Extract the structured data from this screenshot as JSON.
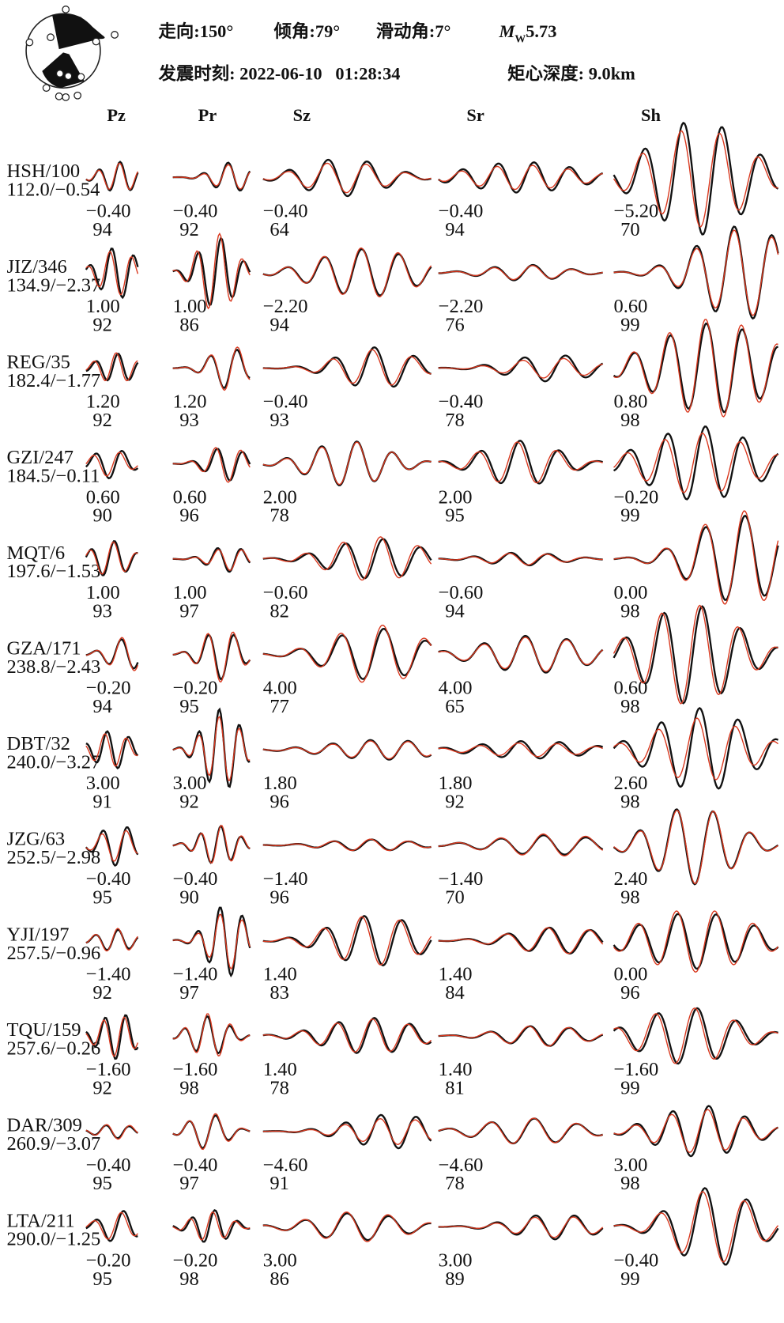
{
  "header": {
    "strike": "走向:150°",
    "dip": "倾角:79°",
    "rake": "滑动角:7°",
    "magnitude_symbol": "M",
    "magnitude_subscript": "W",
    "magnitude_value": "5.73",
    "origin_time": "发震时刻: 2022-06-10   01:28:34",
    "centroid_depth": "矩心深度: 9.0km"
  },
  "columns": [
    "Pz",
    "Pr",
    "Sz",
    "Sr",
    "Sh"
  ],
  "stations": [
    {
      "name": "HSH/100",
      "info": "112.0/−0.54",
      "shifts": [
        "−0.40",
        "−0.40",
        "−0.40",
        "−0.40",
        "−5.20"
      ],
      "correlations": [
        "94",
        "92",
        "64",
        "94",
        "70"
      ]
    },
    {
      "name": "JIZ/346",
      "info": "134.9/−2.37",
      "shifts": [
        "1.00",
        "1.00",
        "−2.20",
        "−2.20",
        "0.60"
      ],
      "correlations": [
        "92",
        "86",
        "94",
        "76",
        "99"
      ]
    },
    {
      "name": "REG/35",
      "info": "182.4/−1.77",
      "shifts": [
        "1.20",
        "1.20",
        "−0.40",
        "−0.40",
        "0.80"
      ],
      "correlations": [
        "92",
        "93",
        "93",
        "78",
        "98"
      ]
    },
    {
      "name": "GZI/247",
      "info": "184.5/−0.11",
      "shifts": [
        "0.60",
        "0.60",
        "2.00",
        "2.00",
        "−0.20"
      ],
      "correlations": [
        "90",
        "96",
        "78",
        "95",
        "99"
      ]
    },
    {
      "name": "MQT/6",
      "info": "197.6/−1.53",
      "shifts": [
        "1.00",
        "1.00",
        "−0.60",
        "−0.60",
        "0.00"
      ],
      "correlations": [
        "93",
        "97",
        "82",
        "94",
        "98"
      ]
    },
    {
      "name": "GZA/171",
      "info": "238.8/−2.43",
      "shifts": [
        "−0.20",
        "−0.20",
        "4.00",
        "4.00",
        "0.60"
      ],
      "correlations": [
        "94",
        "95",
        "77",
        "65",
        "98"
      ]
    },
    {
      "name": "DBT/32",
      "info": "240.0/−3.27",
      "shifts": [
        "3.00",
        "3.00",
        "1.80",
        "1.80",
        "2.60"
      ],
      "correlations": [
        "91",
        "92",
        "96",
        "92",
        "98"
      ]
    },
    {
      "name": "JZG/63",
      "info": "252.5/−2.98",
      "shifts": [
        "−0.40",
        "−0.40",
        "−1.40",
        "−1.40",
        "2.40"
      ],
      "correlations": [
        "95",
        "90",
        "96",
        "70",
        "98"
      ]
    },
    {
      "name": "YJI/197",
      "info": "257.5/−0.96",
      "shifts": [
        "−1.40",
        "−1.40",
        "1.40",
        "1.40",
        "0.00"
      ],
      "correlations": [
        "92",
        "97",
        "83",
        "84",
        "96"
      ]
    },
    {
      "name": "TQU/159",
      "info": "257.6/−0.26",
      "shifts": [
        "−1.60",
        "−1.60",
        "1.40",
        "1.40",
        "−1.60"
      ],
      "correlations": [
        "92",
        "98",
        "78",
        "81",
        "99"
      ]
    },
    {
      "name": "DAR/309",
      "info": "260.9/−3.07",
      "shifts": [
        "−0.40",
        "−0.40",
        "−4.60",
        "−4.60",
        "3.00"
      ],
      "correlations": [
        "95",
        "97",
        "91",
        "78",
        "98"
      ]
    },
    {
      "name": "LTA/211",
      "info": "290.0/−1.25",
      "shifts": [
        "−0.20",
        "−0.20",
        "3.00",
        "3.00",
        "−0.40"
      ],
      "correlations": [
        "95",
        "98",
        "86",
        "89",
        "99"
      ]
    }
  ]
}
